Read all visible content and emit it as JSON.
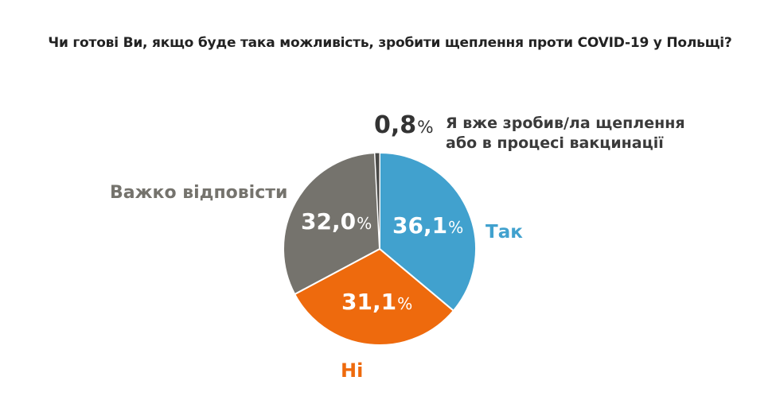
{
  "chart_data": {
    "type": "pie",
    "title": "Чи готові Ви, якщо буде така можливість, зробити щеплення проти COVID-19 у Польщі?",
    "unit": "%",
    "slices": [
      {
        "key": "tak",
        "label": "Так",
        "value": 36.1,
        "value_text": "36,1",
        "color": "#41A1CE"
      },
      {
        "key": "ni",
        "label": "Ні",
        "value": 31.1,
        "value_text": "31,1",
        "color": "#EE6A0D"
      },
      {
        "key": "so",
        "label": "Важко відповісти",
        "value": 32.0,
        "value_text": "32,0",
        "color": "#75736D"
      },
      {
        "key": "vax",
        "label_lines": [
          "Я вже зробив/ла щеплення",
          "або в процесі вакцинації"
        ],
        "value": 0.8,
        "value_text": "0,8",
        "color": "#4A4A48"
      }
    ]
  }
}
